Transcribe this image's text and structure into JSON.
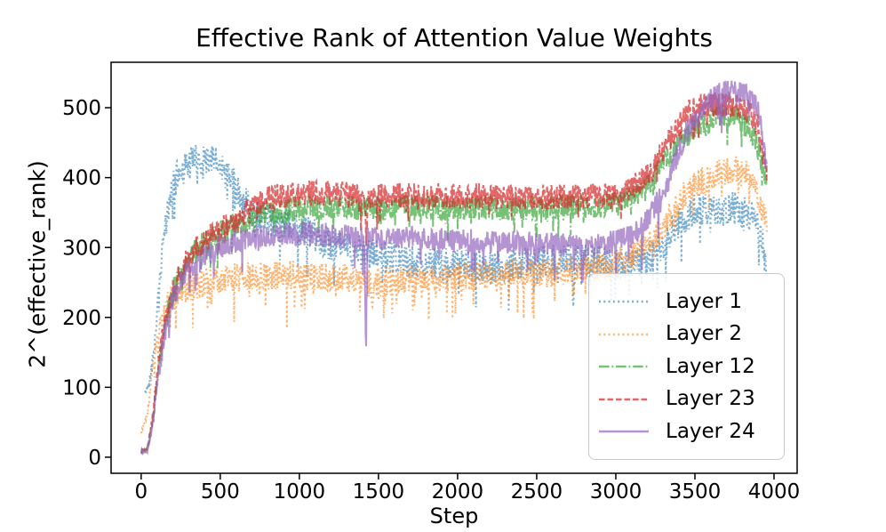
{
  "title": "Effective Rank of Attention Value Weights",
  "chart_data": {
    "type": "line",
    "title": "Effective Rank of Attention Value Weights",
    "xlabel": "Step",
    "ylabel": "2^(effective_rank)",
    "xlim": [
      -190,
      4146
    ],
    "ylim": [
      -23,
      565
    ],
    "x_ticks": [
      0,
      500,
      1000,
      1500,
      2000,
      2500,
      3000,
      3500,
      4000
    ],
    "y_ticks": [
      0,
      100,
      200,
      300,
      400,
      500
    ],
    "grid": false,
    "axis_color": "#000000",
    "legend": {
      "position": "lower right",
      "labels": [
        "Layer 1",
        "Layer 2",
        "Layer 12",
        "Layer 23",
        "Layer 24"
      ]
    },
    "series": [
      {
        "name": "Layer 1",
        "color": "#1f77b4",
        "alpha": 0.6,
        "style": "dotted",
        "band": 24,
        "dip_prob": 0.05,
        "dip_depth": 55,
        "trend": [
          [
            25,
            92
          ],
          [
            50,
            105
          ],
          [
            80,
            150
          ],
          [
            110,
            230
          ],
          [
            140,
            305
          ],
          [
            170,
            355
          ],
          [
            200,
            388
          ],
          [
            230,
            402
          ],
          [
            260,
            412
          ],
          [
            300,
            418
          ],
          [
            340,
            426
          ],
          [
            380,
            420
          ],
          [
            420,
            428
          ],
          [
            460,
            422
          ],
          [
            500,
            415
          ],
          [
            540,
            405
          ],
          [
            580,
            392
          ],
          [
            620,
            376
          ],
          [
            660,
            362
          ],
          [
            700,
            352
          ],
          [
            750,
            345
          ],
          [
            800,
            340
          ],
          [
            900,
            333
          ],
          [
            1000,
            326
          ],
          [
            1100,
            316
          ],
          [
            1200,
            306
          ],
          [
            1300,
            298
          ],
          [
            1400,
            292
          ],
          [
            1500,
            288
          ],
          [
            1600,
            283
          ],
          [
            1700,
            280
          ],
          [
            1800,
            277
          ],
          [
            1900,
            276
          ],
          [
            2000,
            274
          ],
          [
            2100,
            272
          ],
          [
            2200,
            272
          ],
          [
            2300,
            274
          ],
          [
            2400,
            276
          ],
          [
            2500,
            278
          ],
          [
            2600,
            282
          ],
          [
            2722,
            283
          ],
          [
            2730,
            210
          ],
          [
            2738,
            283
          ],
          [
            2800,
            282
          ],
          [
            2900,
            280
          ],
          [
            3000,
            278
          ],
          [
            3100,
            274
          ],
          [
            3200,
            284
          ],
          [
            3300,
            302
          ],
          [
            3350,
            322
          ],
          [
            3400,
            336
          ],
          [
            3450,
            346
          ],
          [
            3500,
            352
          ],
          [
            3600,
            355
          ],
          [
            3700,
            352
          ],
          [
            3750,
            358
          ],
          [
            3800,
            352
          ],
          [
            3850,
            346
          ],
          [
            3880,
            338
          ],
          [
            3910,
            320
          ],
          [
            3935,
            296
          ],
          [
            3955,
            272
          ]
        ]
      },
      {
        "name": "Layer 2",
        "color": "#ff7f0e",
        "alpha": 0.6,
        "style": "dotted",
        "band": 21,
        "dip_prob": 0.07,
        "dip_depth": 60,
        "trend": [
          [
            0,
            35
          ],
          [
            40,
            62
          ],
          [
            80,
            140
          ],
          [
            120,
            186
          ],
          [
            160,
            215
          ],
          [
            200,
            228
          ],
          [
            250,
            238
          ],
          [
            300,
            243
          ],
          [
            400,
            250
          ],
          [
            500,
            255
          ],
          [
            700,
            258
          ],
          [
            900,
            262
          ],
          [
            1100,
            258
          ],
          [
            1300,
            255
          ],
          [
            1450,
            250
          ],
          [
            1460,
            196
          ],
          [
            1470,
            250
          ],
          [
            1700,
            255
          ],
          [
            2000,
            258
          ],
          [
            2300,
            262
          ],
          [
            2600,
            265
          ],
          [
            2900,
            272
          ],
          [
            3000,
            278
          ],
          [
            3100,
            287
          ],
          [
            3200,
            302
          ],
          [
            3300,
            330
          ],
          [
            3400,
            365
          ],
          [
            3500,
            390
          ],
          [
            3600,
            402
          ],
          [
            3700,
            408
          ],
          [
            3750,
            412
          ],
          [
            3800,
            408
          ],
          [
            3850,
            398
          ],
          [
            3880,
            386
          ],
          [
            3910,
            366
          ],
          [
            3935,
            346
          ],
          [
            3955,
            328
          ]
        ]
      },
      {
        "name": "Layer 12",
        "color": "#2ca02c",
        "alpha": 0.65,
        "style": "dashdot",
        "band": 18,
        "dip_prob": 0.05,
        "dip_depth": 40,
        "trend": [
          [
            0,
            8
          ],
          [
            40,
            12
          ],
          [
            70,
            45
          ],
          [
            100,
            110
          ],
          [
            150,
            192
          ],
          [
            200,
            236
          ],
          [
            250,
            263
          ],
          [
            300,
            283
          ],
          [
            350,
            296
          ],
          [
            400,
            306
          ],
          [
            450,
            313
          ],
          [
            500,
            321
          ],
          [
            600,
            333
          ],
          [
            700,
            342
          ],
          [
            800,
            348
          ],
          [
            900,
            352
          ],
          [
            1000,
            355
          ],
          [
            1200,
            358
          ],
          [
            1400,
            356
          ],
          [
            1600,
            357
          ],
          [
            1800,
            358
          ],
          [
            2000,
            358
          ],
          [
            2200,
            357
          ],
          [
            2400,
            356
          ],
          [
            2600,
            357
          ],
          [
            2800,
            358
          ],
          [
            3000,
            362
          ],
          [
            3100,
            370
          ],
          [
            3200,
            386
          ],
          [
            3300,
            420
          ],
          [
            3400,
            450
          ],
          [
            3500,
            470
          ],
          [
            3600,
            480
          ],
          [
            3650,
            487
          ],
          [
            3700,
            491
          ],
          [
            3750,
            488
          ],
          [
            3800,
            478
          ],
          [
            3850,
            470
          ],
          [
            3880,
            456
          ],
          [
            3910,
            432
          ],
          [
            3955,
            402
          ]
        ]
      },
      {
        "name": "Layer 23",
        "color": "#d62728",
        "alpha": 0.7,
        "style": "dashed",
        "band": 18,
        "dip_prob": 0.04,
        "dip_depth": 35,
        "trend": [
          [
            0,
            8
          ],
          [
            40,
            13
          ],
          [
            70,
            50
          ],
          [
            100,
            116
          ],
          [
            150,
            196
          ],
          [
            200,
            240
          ],
          [
            250,
            268
          ],
          [
            300,
            288
          ],
          [
            350,
            300
          ],
          [
            400,
            310
          ],
          [
            450,
            318
          ],
          [
            500,
            325
          ],
          [
            550,
            332
          ],
          [
            600,
            340
          ],
          [
            650,
            350
          ],
          [
            700,
            360
          ],
          [
            800,
            370
          ],
          [
            900,
            375
          ],
          [
            1000,
            378
          ],
          [
            1200,
            377
          ],
          [
            1350,
            376
          ],
          [
            1415,
            372
          ],
          [
            1423,
            302
          ],
          [
            1431,
            372
          ],
          [
            1600,
            375
          ],
          [
            1800,
            374
          ],
          [
            2100,
            374
          ],
          [
            2400,
            372
          ],
          [
            2700,
            372
          ],
          [
            3000,
            375
          ],
          [
            3100,
            385
          ],
          [
            3200,
            402
          ],
          [
            3250,
            418
          ],
          [
            3300,
            440
          ],
          [
            3350,
            460
          ],
          [
            3400,
            475
          ],
          [
            3450,
            490
          ],
          [
            3500,
            500
          ],
          [
            3600,
            506
          ],
          [
            3700,
            505
          ],
          [
            3800,
            500
          ],
          [
            3850,
            492
          ],
          [
            3900,
            472
          ],
          [
            3930,
            435
          ],
          [
            3955,
            398
          ]
        ]
      },
      {
        "name": "Layer 24",
        "color": "#9467bd",
        "alpha": 0.7,
        "style": "solid",
        "band": 17,
        "dip_prob": 0.05,
        "dip_depth": 50,
        "trend": [
          [
            0,
            7
          ],
          [
            40,
            11
          ],
          [
            70,
            40
          ],
          [
            100,
            100
          ],
          [
            150,
            180
          ],
          [
            200,
            226
          ],
          [
            250,
            252
          ],
          [
            300,
            268
          ],
          [
            350,
            280
          ],
          [
            400,
            288
          ],
          [
            500,
            300
          ],
          [
            600,
            310
          ],
          [
            700,
            316
          ],
          [
            800,
            318
          ],
          [
            1000,
            320
          ],
          [
            1200,
            318
          ],
          [
            1350,
            314
          ],
          [
            1410,
            312
          ],
          [
            1421,
            138
          ],
          [
            1430,
            312
          ],
          [
            1600,
            314
          ],
          [
            1800,
            312
          ],
          [
            2000,
            310
          ],
          [
            2200,
            308
          ],
          [
            2400,
            306
          ],
          [
            2600,
            305
          ],
          [
            2782,
            302
          ],
          [
            2790,
            234
          ],
          [
            2798,
            302
          ],
          [
            2900,
            304
          ],
          [
            3000,
            308
          ],
          [
            3100,
            316
          ],
          [
            3200,
            340
          ],
          [
            3300,
            380
          ],
          [
            3350,
            410
          ],
          [
            3400,
            440
          ],
          [
            3450,
            466
          ],
          [
            3500,
            486
          ],
          [
            3550,
            500
          ],
          [
            3600,
            512
          ],
          [
            3650,
            518
          ],
          [
            3700,
            522
          ],
          [
            3750,
            524
          ],
          [
            3800,
            521
          ],
          [
            3850,
            515
          ],
          [
            3880,
            506
          ],
          [
            3910,
            486
          ],
          [
            3930,
            452
          ],
          [
            3955,
            402
          ]
        ]
      }
    ]
  }
}
